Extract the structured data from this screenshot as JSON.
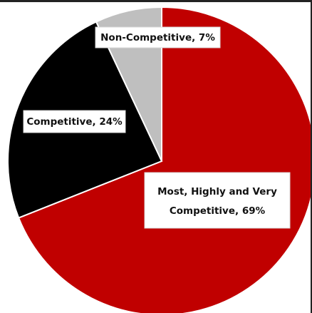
{
  "chart_data": {
    "type": "pie",
    "title": "",
    "slices": [
      {
        "label": "Most, Highly and Very Competitive",
        "value": 69,
        "color": "#C00000",
        "label_line1": "Most, Highly and Very",
        "label_line2": "Competitive, 69%"
      },
      {
        "label": "Competitive",
        "value": 24,
        "color": "#000000",
        "label_line1": "Competitive, 24%"
      },
      {
        "label": "Non-Competitive",
        "value": 7,
        "color": "#BFBFBF",
        "label_line1": "Non-Competitive, 7%"
      }
    ],
    "start_angle_deg": 0,
    "direction": "clockwise",
    "legend": "none"
  }
}
